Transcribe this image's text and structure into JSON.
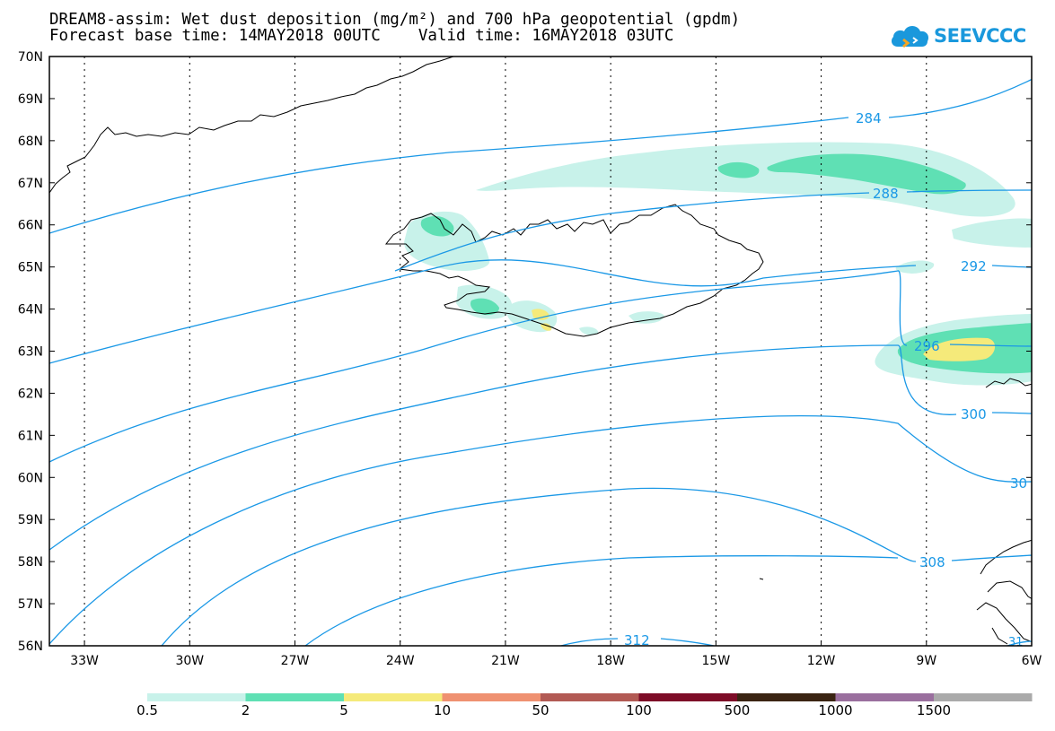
{
  "header": {
    "title_line1": "DREAM8-assim: Wet dust deposition (mg/m²) and 700 hPa geopotential (gpdm)",
    "title_line2": "Forecast base time: 14MAY2018 00UTC    Valid time: 16MAY2018 03UTC"
  },
  "logo": {
    "text": "SEEVCCC",
    "icon": "cloud-icon"
  },
  "map": {
    "lat_labels": [
      "70N",
      "69N",
      "68N",
      "67N",
      "66N",
      "65N",
      "64N",
      "63N",
      "62N",
      "61N",
      "60N",
      "59N",
      "58N",
      "57N",
      "56N"
    ],
    "lon_labels": [
      "33W",
      "30W",
      "27W",
      "24W",
      "21W",
      "18W",
      "15W",
      "12W",
      "9W",
      "6W"
    ],
    "contour_labels": [
      "284",
      "288",
      "292",
      "296",
      "300",
      "30",
      "308",
      "312",
      "31"
    ],
    "grid": true,
    "contour_color": "#1a98e6"
  },
  "legend": {
    "thresholds": [
      "0.5",
      "2",
      "5",
      "10",
      "50",
      "100",
      "500",
      "1000",
      "1500"
    ],
    "colors": [
      "#c8f2ea",
      "#5fe0b4",
      "#f5ea7a",
      "#ef9171",
      "#b25a54",
      "#7d0c27",
      "#3a2412",
      "#9a6f9e",
      "#aaaaaa"
    ]
  }
}
